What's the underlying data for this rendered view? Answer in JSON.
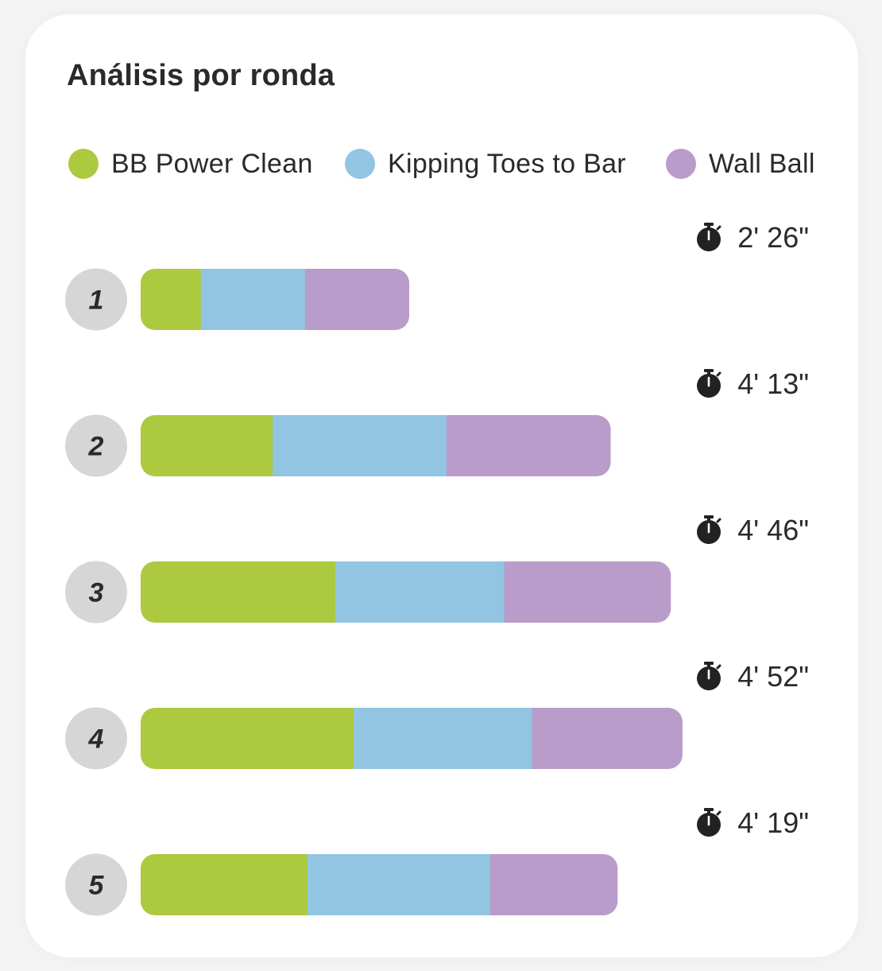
{
  "chart_data": {
    "type": "bar",
    "orientation": "horizontal",
    "stacked": true,
    "title": "Análisis por ronda",
    "categories": [
      "1",
      "2",
      "3",
      "4",
      "5"
    ],
    "series": [
      {
        "name": "BB Power Clean",
        "color": "#acc940",
        "values": [
          26,
          57,
          84,
          92,
          72
        ]
      },
      {
        "name": "Kipping Toes to Bar",
        "color": "#91c5e2",
        "values": [
          45,
          75,
          73,
          77,
          79
        ]
      },
      {
        "name": "Wall Ball",
        "color": "#b99cc9",
        "values": [
          45,
          71,
          72,
          65,
          55
        ]
      }
    ],
    "round_times": [
      "2' 26\"",
      "4' 13\"",
      "4' 46\"",
      "4' 52\"",
      "4' 19\""
    ],
    "xlim": [
      0,
      292
    ],
    "grid": false,
    "legend": "top"
  },
  "colors": {
    "round_badge": "#d6d6d6",
    "text": "#2a2a2a"
  },
  "icons": {
    "timer": "stopwatch-icon"
  }
}
